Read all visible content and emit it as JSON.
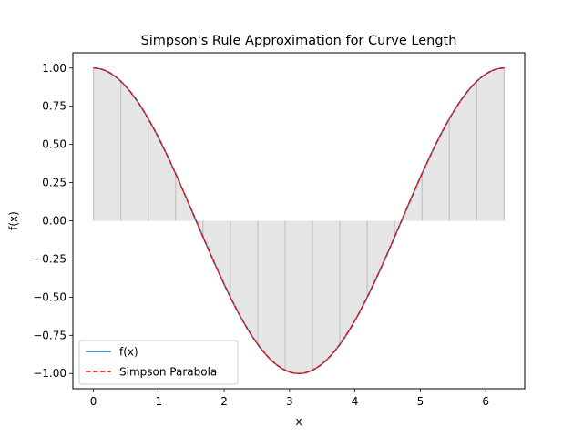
{
  "chart_data": {
    "type": "area",
    "title": "Simpson's Rule Approximation for Curve Length",
    "xlabel": "x",
    "ylabel": "f(x)",
    "xlim": [
      -0.314,
      6.597
    ],
    "ylim": [
      -1.1,
      1.1
    ],
    "xticks": [
      0,
      1,
      2,
      3,
      4,
      5,
      6
    ],
    "xtick_labels": [
      "0",
      "1",
      "2",
      "3",
      "4",
      "5",
      "6"
    ],
    "yticks": [
      -1.0,
      -0.75,
      -0.5,
      -0.25,
      0.0,
      0.25,
      0.5,
      0.75,
      1.0
    ],
    "ytick_labels": [
      "−1.00",
      "−0.75",
      "−0.50",
      "−0.25",
      "0.00",
      "0.25",
      "0.50",
      "0.75",
      "1.00"
    ],
    "grid": false,
    "legend_placement": "lower-left",
    "x_domain": [
      0,
      6.2832
    ],
    "function": "cos(x)",
    "num_intervals": 15,
    "series": [
      {
        "name": "f(x)",
        "style": "solid",
        "color": "#1f77b4"
      },
      {
        "name": "Simpson Parabola",
        "style": "dashed",
        "color": "#ff0000"
      }
    ],
    "fill_color": "#e5e5e5",
    "interval_line_color": "#c4c4c4"
  }
}
